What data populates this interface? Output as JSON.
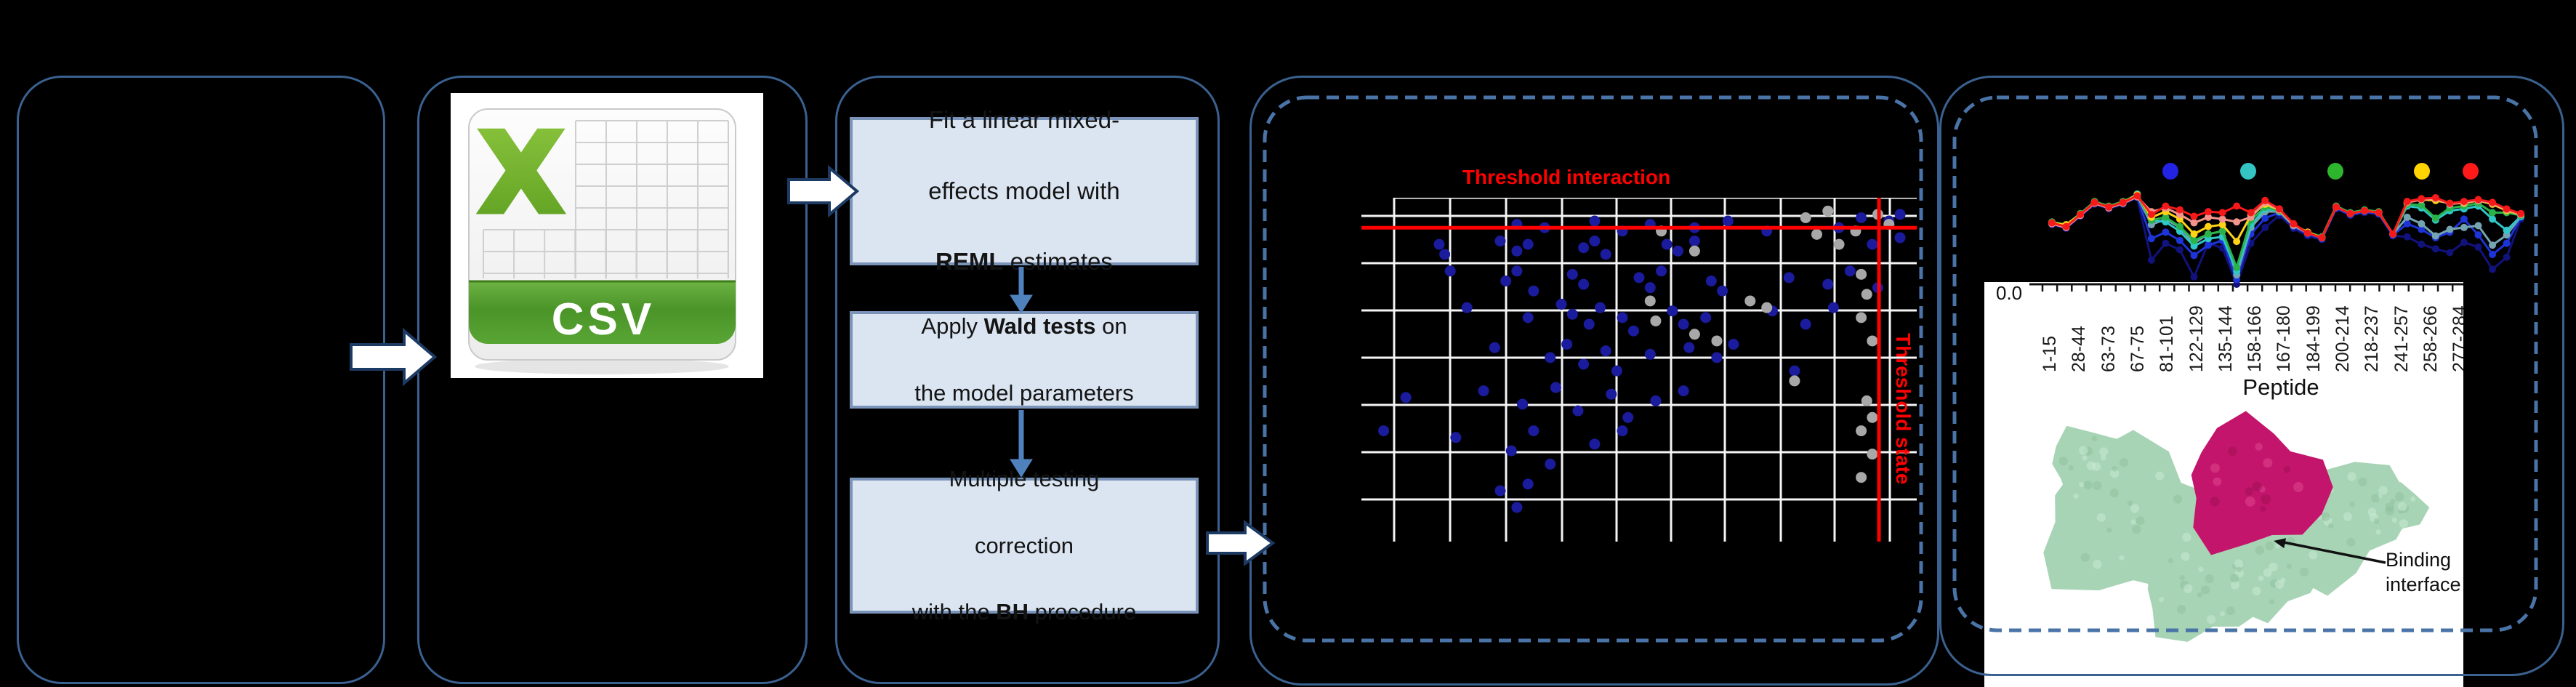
{
  "figure_title": "",
  "csv_icon": {
    "banner_label": "CSV",
    "letter": "X",
    "colors": {
      "x_green_light": "#8dc63f",
      "x_green_dark": "#5c9e20",
      "banner_top": "#6db344",
      "banner_bottom": "#4b9428",
      "grid_line": "#cfcfcf"
    }
  },
  "pipeline": {
    "steps": [
      {
        "name": "fit-lme-step",
        "lines": [
          [
            {
              "t": "Fit a linear mixed-"
            }
          ],
          [
            {
              "t": "effects model with"
            }
          ],
          [
            {
              "t": "REML",
              "b": 1
            },
            {
              "t": " estimates"
            }
          ]
        ]
      },
      {
        "name": "wald-step",
        "lines": [
          [
            {
              "t": "Apply "
            },
            {
              "t": "Wald tests",
              "b": 1
            },
            {
              "t": " on"
            }
          ],
          [
            {
              "t": "the model parameters"
            }
          ]
        ]
      },
      {
        "name": "bh-step",
        "lines": [
          [
            {
              "t": "Multiple testing"
            }
          ],
          [
            {
              "t": "correction"
            }
          ],
          [
            {
              "t": "with the "
            },
            {
              "t": "BH",
              "b": 1
            },
            {
              "t": " procedure"
            }
          ]
        ]
      }
    ]
  },
  "protein": {
    "annotation_line1": "Binding",
    "annotation_line2": "interface",
    "surface_color": "#a7d4b4",
    "binding_color": "#c4156c"
  },
  "chart_data": [
    {
      "type": "scatter",
      "title": "Threshold interaction",
      "threshold_labels": {
        "interaction": "Threshold interaction",
        "state": "Threshold state"
      },
      "grid": true,
      "x_range": [
        0,
        1
      ],
      "y_range": [
        0,
        1
      ],
      "thresholds": {
        "horizontal_y": 0.09,
        "vertical_x": 0.932
      },
      "series": [
        {
          "name": "significant-peptides",
          "color": "#1b1b9e",
          "points": [
            [
              0.28,
              0.08
            ],
            [
              0.33,
              0.09
            ],
            [
              0.42,
              0.07
            ],
            [
              0.47,
              0.1
            ],
            [
              0.52,
              0.08
            ],
            [
              0.6,
              0.09
            ],
            [
              0.66,
              0.07
            ],
            [
              0.73,
              0.1
            ],
            [
              0.86,
              0.09
            ],
            [
              0.9,
              0.06
            ],
            [
              0.95,
              0.07
            ],
            [
              0.97,
              0.05
            ],
            [
              0.14,
              0.14
            ],
            [
              0.15,
              0.17
            ],
            [
              0.25,
              0.13
            ],
            [
              0.28,
              0.16
            ],
            [
              0.3,
              0.14
            ],
            [
              0.4,
              0.15
            ],
            [
              0.42,
              0.13
            ],
            [
              0.44,
              0.17
            ],
            [
              0.55,
              0.14
            ],
            [
              0.57,
              0.16
            ],
            [
              0.6,
              0.13
            ],
            [
              0.92,
              0.14
            ],
            [
              0.97,
              0.12
            ],
            [
              0.16,
              0.22
            ],
            [
              0.26,
              0.25
            ],
            [
              0.28,
              0.22
            ],
            [
              0.31,
              0.28
            ],
            [
              0.38,
              0.23
            ],
            [
              0.4,
              0.26
            ],
            [
              0.5,
              0.24
            ],
            [
              0.52,
              0.27
            ],
            [
              0.54,
              0.22
            ],
            [
              0.63,
              0.25
            ],
            [
              0.65,
              0.28
            ],
            [
              0.77,
              0.24
            ],
            [
              0.84,
              0.26
            ],
            [
              0.88,
              0.22
            ],
            [
              0.93,
              0.27
            ],
            [
              0.19,
              0.33
            ],
            [
              0.3,
              0.36
            ],
            [
              0.36,
              0.32
            ],
            [
              0.38,
              0.35
            ],
            [
              0.41,
              0.38
            ],
            [
              0.43,
              0.33
            ],
            [
              0.47,
              0.36
            ],
            [
              0.49,
              0.4
            ],
            [
              0.56,
              0.34
            ],
            [
              0.58,
              0.38
            ],
            [
              0.62,
              0.36
            ],
            [
              0.74,
              0.34
            ],
            [
              0.8,
              0.38
            ],
            [
              0.85,
              0.33
            ],
            [
              0.24,
              0.45
            ],
            [
              0.34,
              0.48
            ],
            [
              0.37,
              0.44
            ],
            [
              0.4,
              0.5
            ],
            [
              0.44,
              0.46
            ],
            [
              0.46,
              0.52
            ],
            [
              0.52,
              0.47
            ],
            [
              0.59,
              0.45
            ],
            [
              0.64,
              0.48
            ],
            [
              0.67,
              0.44
            ],
            [
              0.78,
              0.52
            ],
            [
              0.08,
              0.6
            ],
            [
              0.22,
              0.58
            ],
            [
              0.29,
              0.62
            ],
            [
              0.35,
              0.57
            ],
            [
              0.39,
              0.64
            ],
            [
              0.45,
              0.59
            ],
            [
              0.48,
              0.66
            ],
            [
              0.53,
              0.61
            ],
            [
              0.58,
              0.58
            ],
            [
              0.04,
              0.7
            ],
            [
              0.17,
              0.72
            ],
            [
              0.27,
              0.76
            ],
            [
              0.31,
              0.7
            ],
            [
              0.34,
              0.8
            ],
            [
              0.42,
              0.74
            ],
            [
              0.47,
              0.7
            ],
            [
              0.25,
              0.88
            ],
            [
              0.28,
              0.93
            ],
            [
              0.3,
              0.86
            ]
          ]
        },
        {
          "name": "non-significant-peptides",
          "color": "#a8a8a8",
          "points": [
            [
              0.54,
              0.1
            ],
            [
              0.6,
              0.16
            ],
            [
              0.8,
              0.06
            ],
            [
              0.82,
              0.11
            ],
            [
              0.84,
              0.04
            ],
            [
              0.86,
              0.14
            ],
            [
              0.89,
              0.1
            ],
            [
              0.93,
              0.05
            ],
            [
              0.95,
              0.08
            ],
            [
              0.52,
              0.31
            ],
            [
              0.53,
              0.37
            ],
            [
              0.6,
              0.41
            ],
            [
              0.64,
              0.43
            ],
            [
              0.7,
              0.31
            ],
            [
              0.73,
              0.33
            ],
            [
              0.78,
              0.55
            ],
            [
              0.9,
              0.23
            ],
            [
              0.91,
              0.29
            ],
            [
              0.9,
              0.36
            ],
            [
              0.92,
              0.43
            ],
            [
              0.91,
              0.61
            ],
            [
              0.92,
              0.66
            ],
            [
              0.9,
              0.7
            ],
            [
              0.92,
              0.77
            ],
            [
              0.9,
              0.84
            ]
          ]
        }
      ]
    },
    {
      "type": "line",
      "xlabel": "Peptide",
      "y_first_tick": "0.0",
      "x_tick_labels": [
        "1-15",
        "28-44",
        "63-73",
        "67-75",
        "81-101",
        "122-129",
        "135-144",
        "158-166",
        "167-180",
        "184-199",
        "200-214",
        "218-237",
        "241-257",
        "258-266",
        "277-284"
      ],
      "legend_marker_colors": [
        "#2323e6",
        "#35c4c4",
        "#2db52d",
        "#ffd400",
        "#ff1a1a"
      ],
      "series": [
        {
          "name": "series-navy",
          "color": "#12127d",
          "values": [
            0.64,
            0.6,
            0.73,
            0.86,
            0.81,
            0.86,
            0.93,
            0.26,
            0.44,
            0.37,
            0.08,
            0.44,
            0.39,
            0.0,
            0.44,
            0.61,
            0.74,
            0.6,
            0.52,
            0.48,
            0.81,
            0.74,
            0.77,
            0.75,
            0.52,
            0.51,
            0.43,
            0.38,
            0.34,
            0.45,
            0.4,
            0.16,
            0.29,
            0.7
          ]
        },
        {
          "name": "series-blue",
          "color": "#1d34d8",
          "values": [
            0.65,
            0.61,
            0.74,
            0.87,
            0.82,
            0.87,
            0.94,
            0.49,
            0.56,
            0.47,
            0.31,
            0.42,
            0.47,
            0.05,
            0.54,
            0.71,
            0.77,
            0.62,
            0.54,
            0.49,
            0.82,
            0.75,
            0.78,
            0.76,
            0.53,
            0.65,
            0.59,
            0.5,
            0.56,
            0.7,
            0.53,
            0.32,
            0.44,
            0.72
          ]
        },
        {
          "name": "series-steel",
          "color": "#74a4b2",
          "values": [
            0.66,
            0.62,
            0.75,
            0.88,
            0.83,
            0.88,
            0.95,
            0.64,
            0.7,
            0.61,
            0.44,
            0.54,
            0.57,
            0.1,
            0.61,
            0.78,
            0.78,
            0.63,
            0.55,
            0.5,
            0.83,
            0.76,
            0.79,
            0.77,
            0.54,
            0.72,
            0.65,
            0.52,
            0.59,
            0.61,
            0.63,
            0.42,
            0.53,
            0.73
          ]
        },
        {
          "name": "series-cyan",
          "color": "#2fc7c7",
          "values": [
            0.66,
            0.63,
            0.75,
            0.88,
            0.83,
            0.88,
            0.97,
            0.69,
            0.67,
            0.57,
            0.41,
            0.49,
            0.51,
            0.14,
            0.64,
            0.81,
            0.79,
            0.64,
            0.56,
            0.5,
            0.83,
            0.76,
            0.79,
            0.77,
            0.54,
            0.84,
            0.82,
            0.69,
            0.79,
            0.81,
            0.84,
            0.7,
            0.58,
            0.73
          ]
        },
        {
          "name": "series-green",
          "color": "#29b34a",
          "values": [
            0.67,
            0.64,
            0.76,
            0.89,
            0.84,
            0.89,
            0.96,
            0.69,
            0.72,
            0.62,
            0.47,
            0.54,
            0.57,
            0.18,
            0.69,
            0.83,
            0.79,
            0.64,
            0.56,
            0.51,
            0.84,
            0.77,
            0.8,
            0.78,
            0.54,
            0.86,
            0.85,
            0.71,
            0.82,
            0.84,
            0.87,
            0.77,
            0.77,
            0.74
          ]
        },
        {
          "name": "series-yellow",
          "color": "#ffd216",
          "values": [
            0.66,
            0.64,
            0.75,
            0.88,
            0.83,
            0.88,
            0.96,
            0.72,
            0.78,
            0.7,
            0.54,
            0.62,
            0.64,
            0.46,
            0.74,
            0.86,
            0.8,
            0.64,
            0.56,
            0.5,
            0.83,
            0.76,
            0.79,
            0.77,
            0.54,
            0.88,
            0.91,
            0.9,
            0.87,
            0.87,
            0.9,
            0.86,
            0.79,
            0.75
          ]
        },
        {
          "name": "series-salmon",
          "color": "#f2948c",
          "values": [
            0.65,
            0.61,
            0.74,
            0.87,
            0.82,
            0.87,
            0.94,
            0.78,
            0.82,
            0.75,
            0.66,
            0.72,
            0.7,
            0.67,
            0.72,
            0.88,
            0.8,
            0.64,
            0.55,
            0.5,
            0.83,
            0.76,
            0.79,
            0.77,
            0.54,
            0.88,
            0.91,
            0.92,
            0.86,
            0.88,
            0.9,
            0.87,
            0.8,
            0.75
          ]
        },
        {
          "name": "series-red",
          "color": "#f61919",
          "values": [
            0.66,
            0.62,
            0.75,
            0.88,
            0.83,
            0.88,
            0.95,
            0.75,
            0.84,
            0.8,
            0.73,
            0.78,
            0.77,
            0.84,
            0.77,
            0.9,
            0.81,
            0.65,
            0.55,
            0.5,
            0.83,
            0.76,
            0.79,
            0.77,
            0.54,
            0.89,
            0.92,
            0.93,
            0.87,
            0.89,
            0.91,
            0.88,
            0.81,
            0.76
          ]
        }
      ]
    }
  ]
}
